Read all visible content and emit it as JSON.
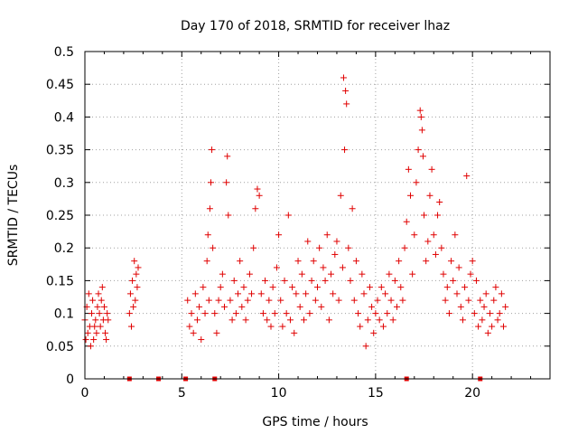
{
  "chart_data": {
    "type": "scatter",
    "title": "Day 170 of 2018, SRMTID for receiver lhaz",
    "xlabel": "GPS time / hours",
    "ylabel": "SRMTID / TECUs",
    "xlim": [
      0,
      24
    ],
    "ylim": [
      0,
      0.5
    ],
    "x_ticks": [
      "0",
      "5",
      "10",
      "15",
      "20"
    ],
    "y_ticks": [
      "0",
      "0.05",
      "0.1",
      "0.15",
      "0.2",
      "0.25",
      "0.3",
      "0.35",
      "0.4",
      "0.45",
      "0.5"
    ],
    "grid": true,
    "marker": "plus",
    "color": "#e00000",
    "series": [
      {
        "x": [
          0.0,
          0.05,
          0.1,
          0.15,
          0.2,
          0.25,
          0.3,
          0.35,
          0.4,
          0.45,
          0.5,
          0.55,
          0.6,
          0.65,
          0.7,
          0.75,
          0.8,
          0.85,
          0.9,
          0.95,
          1.0,
          1.05,
          1.1,
          1.15,
          1.2,
          2.3,
          2.35,
          2.4,
          2.45,
          2.5,
          2.55,
          2.6,
          2.65,
          2.7,
          2.75,
          5.3,
          5.4,
          5.5,
          5.6,
          5.7,
          5.8,
          5.9,
          6.0,
          6.1,
          6.2,
          6.3,
          6.35,
          6.4,
          6.45,
          6.5,
          6.55,
          6.6,
          6.7,
          6.8,
          6.9,
          7.0,
          7.1,
          7.2,
          7.3,
          7.35,
          7.4,
          7.5,
          7.6,
          7.7,
          7.8,
          7.9,
          8.0,
          8.1,
          8.2,
          8.3,
          8.4,
          8.5,
          8.6,
          8.7,
          8.8,
          8.9,
          9.0,
          9.1,
          9.2,
          9.3,
          9.4,
          9.5,
          9.6,
          9.7,
          9.8,
          9.9,
          10.0,
          10.1,
          10.2,
          10.3,
          10.4,
          10.5,
          10.6,
          10.7,
          10.8,
          10.9,
          11.0,
          11.1,
          11.2,
          11.3,
          11.4,
          11.5,
          11.6,
          11.7,
          11.8,
          11.9,
          12.0,
          12.1,
          12.2,
          12.3,
          12.4,
          12.5,
          12.6,
          12.7,
          12.8,
          12.9,
          13.0,
          13.1,
          13.2,
          13.3,
          13.35,
          13.4,
          13.45,
          13.5,
          13.6,
          13.7,
          13.8,
          13.9,
          14.0,
          14.1,
          14.2,
          14.3,
          14.4,
          14.5,
          14.6,
          14.7,
          14.8,
          14.9,
          15.0,
          15.1,
          15.2,
          15.3,
          15.4,
          15.5,
          15.6,
          15.7,
          15.8,
          15.9,
          16.0,
          16.1,
          16.2,
          16.3,
          16.4,
          16.5,
          16.6,
          16.7,
          16.8,
          16.9,
          17.0,
          17.1,
          17.2,
          17.3,
          17.35,
          17.4,
          17.45,
          17.5,
          17.6,
          17.7,
          17.8,
          17.9,
          18.0,
          18.1,
          18.2,
          18.3,
          18.4,
          18.5,
          18.6,
          18.7,
          18.8,
          18.9,
          19.0,
          19.1,
          19.2,
          19.3,
          19.4,
          19.5,
          19.6,
          19.7,
          19.8,
          19.9,
          20.0,
          20.1,
          20.2,
          20.3,
          20.4,
          20.5,
          20.6,
          20.7,
          20.8,
          20.9,
          21.0,
          21.1,
          21.2,
          21.3,
          21.4,
          21.5,
          21.6,
          21.7
        ],
        "y": [
          0.09,
          0.06,
          0.11,
          0.07,
          0.13,
          0.08,
          0.05,
          0.1,
          0.12,
          0.06,
          0.08,
          0.09,
          0.07,
          0.11,
          0.13,
          0.1,
          0.08,
          0.12,
          0.14,
          0.09,
          0.11,
          0.07,
          0.06,
          0.1,
          0.09,
          0.1,
          0.13,
          0.08,
          0.15,
          0.11,
          0.18,
          0.12,
          0.16,
          0.14,
          0.17,
          0.12,
          0.08,
          0.1,
          0.07,
          0.13,
          0.09,
          0.11,
          0.06,
          0.14,
          0.1,
          0.18,
          0.22,
          0.12,
          0.26,
          0.3,
          0.35,
          0.2,
          0.1,
          0.07,
          0.12,
          0.14,
          0.16,
          0.11,
          0.3,
          0.34,
          0.25,
          0.12,
          0.09,
          0.15,
          0.1,
          0.13,
          0.18,
          0.11,
          0.14,
          0.09,
          0.12,
          0.16,
          0.13,
          0.2,
          0.26,
          0.29,
          0.28,
          0.13,
          0.1,
          0.15,
          0.09,
          0.12,
          0.08,
          0.14,
          0.1,
          0.17,
          0.22,
          0.12,
          0.08,
          0.15,
          0.1,
          0.25,
          0.09,
          0.14,
          0.07,
          0.13,
          0.18,
          0.11,
          0.16,
          0.09,
          0.13,
          0.21,
          0.1,
          0.15,
          0.18,
          0.12,
          0.14,
          0.2,
          0.11,
          0.17,
          0.15,
          0.22,
          0.09,
          0.16,
          0.13,
          0.19,
          0.21,
          0.12,
          0.28,
          0.17,
          0.46,
          0.35,
          0.44,
          0.42,
          0.2,
          0.15,
          0.26,
          0.12,
          0.18,
          0.1,
          0.08,
          0.16,
          0.13,
          0.05,
          0.09,
          0.14,
          0.11,
          0.07,
          0.1,
          0.12,
          0.09,
          0.14,
          0.08,
          0.13,
          0.1,
          0.16,
          0.12,
          0.09,
          0.15,
          0.11,
          0.18,
          0.14,
          0.12,
          0.2,
          0.24,
          0.32,
          0.28,
          0.16,
          0.22,
          0.3,
          0.35,
          0.41,
          0.4,
          0.38,
          0.34,
          0.25,
          0.18,
          0.21,
          0.28,
          0.32,
          0.22,
          0.19,
          0.25,
          0.27,
          0.2,
          0.16,
          0.12,
          0.14,
          0.1,
          0.18,
          0.15,
          0.22,
          0.13,
          0.17,
          0.11,
          0.09,
          0.14,
          0.31,
          0.12,
          0.16,
          0.18,
          0.1,
          0.15,
          0.08,
          0.12,
          0.09,
          0.11,
          0.13,
          0.07,
          0.1,
          0.08,
          0.12,
          0.14,
          0.09,
          0.1,
          0.13,
          0.08,
          0.11
        ]
      },
      {
        "x": [
          2.3,
          3.8,
          5.2,
          6.7,
          16.6,
          20.4
        ],
        "y": [
          0,
          0,
          0,
          0,
          0,
          0
        ]
      }
    ]
  }
}
